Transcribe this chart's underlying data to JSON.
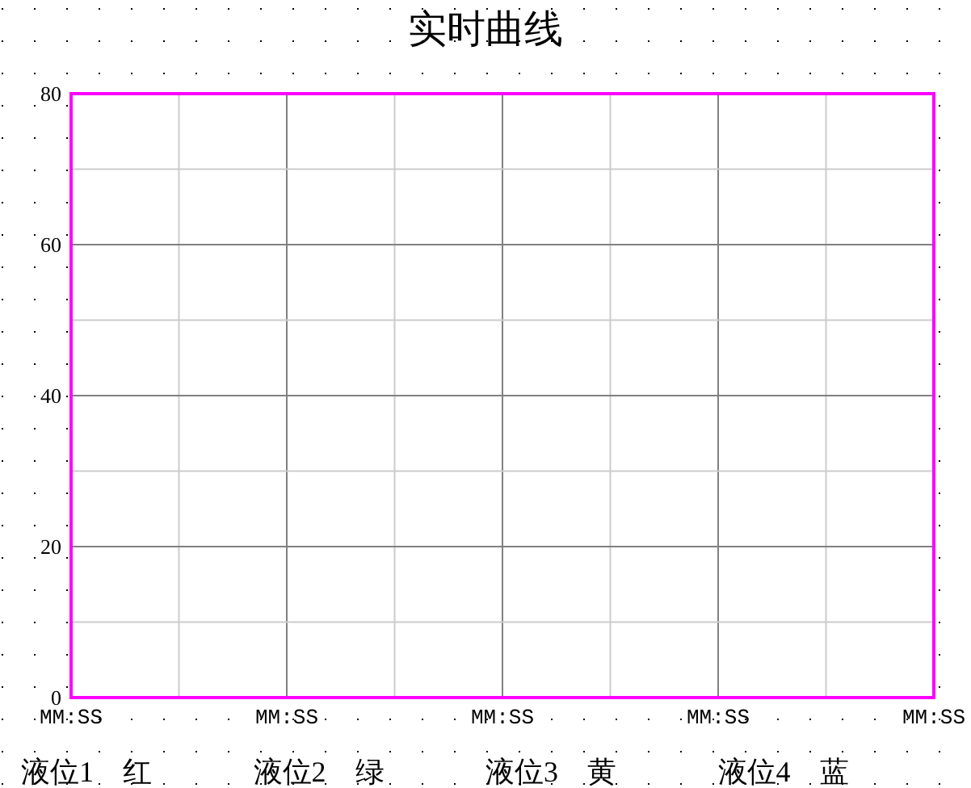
{
  "chart_data": {
    "type": "line",
    "title": "实时曲线",
    "categories": [
      "MM:SS",
      null,
      "MM:SS",
      null,
      "MM:SS",
      null,
      "MM:SS",
      null,
      "MM:SS"
    ],
    "values": [
      null,
      null,
      null,
      null,
      null,
      null,
      null,
      null,
      null
    ],
    "ylim": [
      0,
      80
    ],
    "yticks": [
      0,
      {
        "value": 10,
        "label": null
      },
      20,
      {
        "value": 30,
        "label": null
      },
      40,
      {
        "value": 50,
        "label": null
      },
      60,
      {
        "value": 70,
        "label": null
      },
      80
    ],
    "grid": true,
    "annotations": [
      "液位1　红",
      "液位2　绿",
      "液位3　黄",
      "液位4　蓝"
    ]
  }
}
